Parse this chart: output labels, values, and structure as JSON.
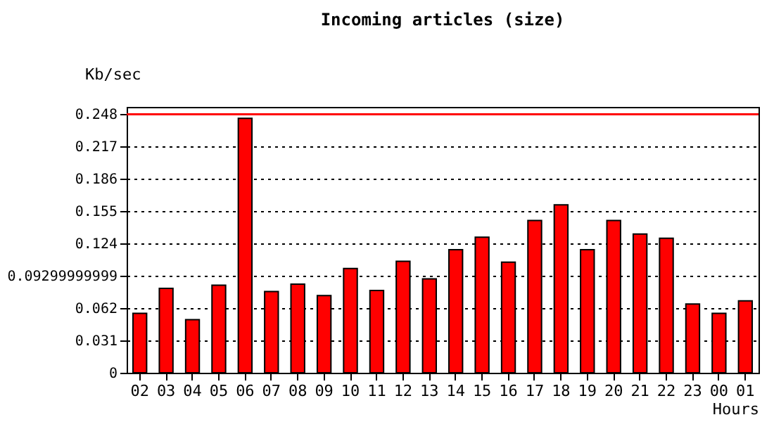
{
  "chart_data": {
    "type": "bar",
    "title": "Incoming articles (size)",
    "xlabel": "Hours",
    "ylabel": "Kb/sec",
    "categories": [
      "02",
      "03",
      "04",
      "05",
      "06",
      "07",
      "08",
      "09",
      "10",
      "11",
      "12",
      "13",
      "14",
      "15",
      "16",
      "17",
      "18",
      "19",
      "20",
      "21",
      "22",
      "23",
      "00",
      "01"
    ],
    "values": [
      0.057,
      0.081,
      0.051,
      0.084,
      0.244,
      0.078,
      0.085,
      0.074,
      0.1,
      0.079,
      0.107,
      0.09,
      0.118,
      0.13,
      0.106,
      0.146,
      0.161,
      0.118,
      0.146,
      0.133,
      0.129,
      0.066,
      0.057,
      0.069
    ],
    "color": "#ff0000",
    "ylim": [
      0,
      0.255
    ],
    "yticks": [
      0,
      0.031,
      0.062,
      0.09299999999,
      0.124,
      0.155,
      0.186,
      0.217,
      0.248
    ],
    "grid": "y",
    "ref_lines": [
      {
        "axis": "y",
        "value": 0.248,
        "color": "#ff0000"
      }
    ]
  }
}
